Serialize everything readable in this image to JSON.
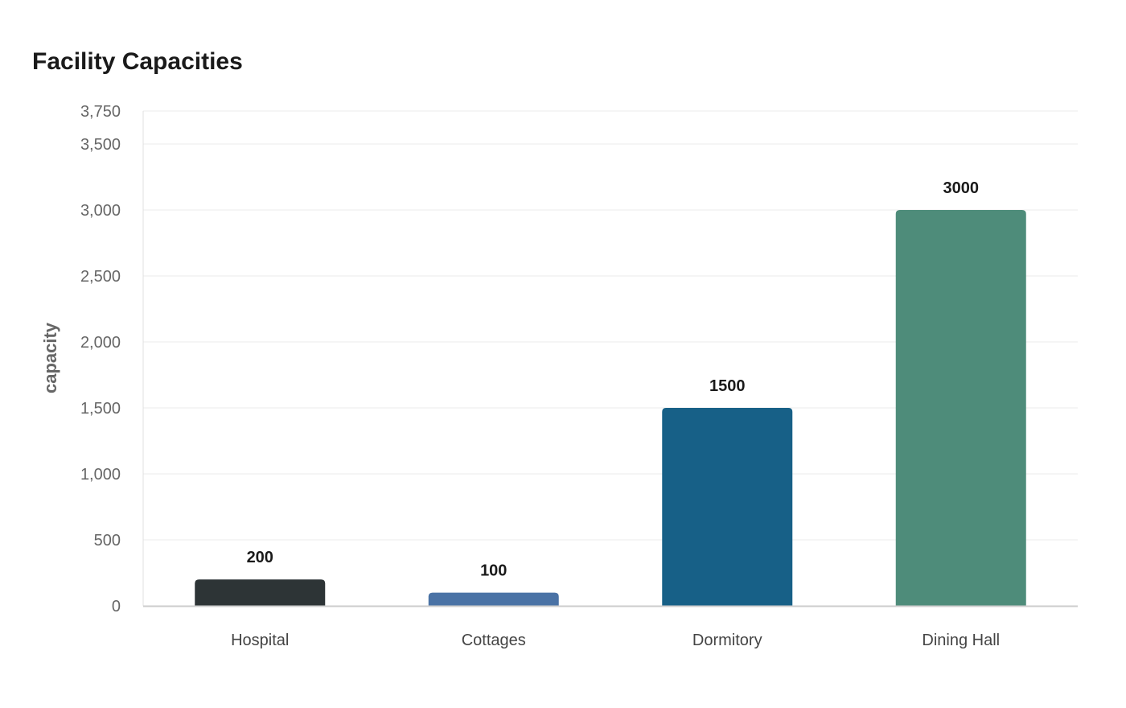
{
  "chart_data": {
    "type": "bar",
    "title": "Facility Capacities",
    "xlabel": "",
    "ylabel": "capacity",
    "categories": [
      "Hospital",
      "Cottages",
      "Dormitory",
      "Dining Hall"
    ],
    "values": [
      200,
      100,
      1500,
      3000
    ],
    "data_labels": [
      "200",
      "100",
      "1500",
      "3000"
    ],
    "colors": [
      "#2d3436",
      "#4a72a5",
      "#176087",
      "#4e8c7a"
    ],
    "ylim": [
      0,
      3750
    ],
    "yticks": [
      0,
      500,
      1000,
      1500,
      2000,
      2500,
      3000,
      3500,
      3750
    ],
    "ytick_labels": [
      "0",
      "500",
      "1,000",
      "1,500",
      "2,000",
      "2,500",
      "3,000",
      "3,500",
      "3,750"
    ],
    "grid": true,
    "legend": "none"
  }
}
